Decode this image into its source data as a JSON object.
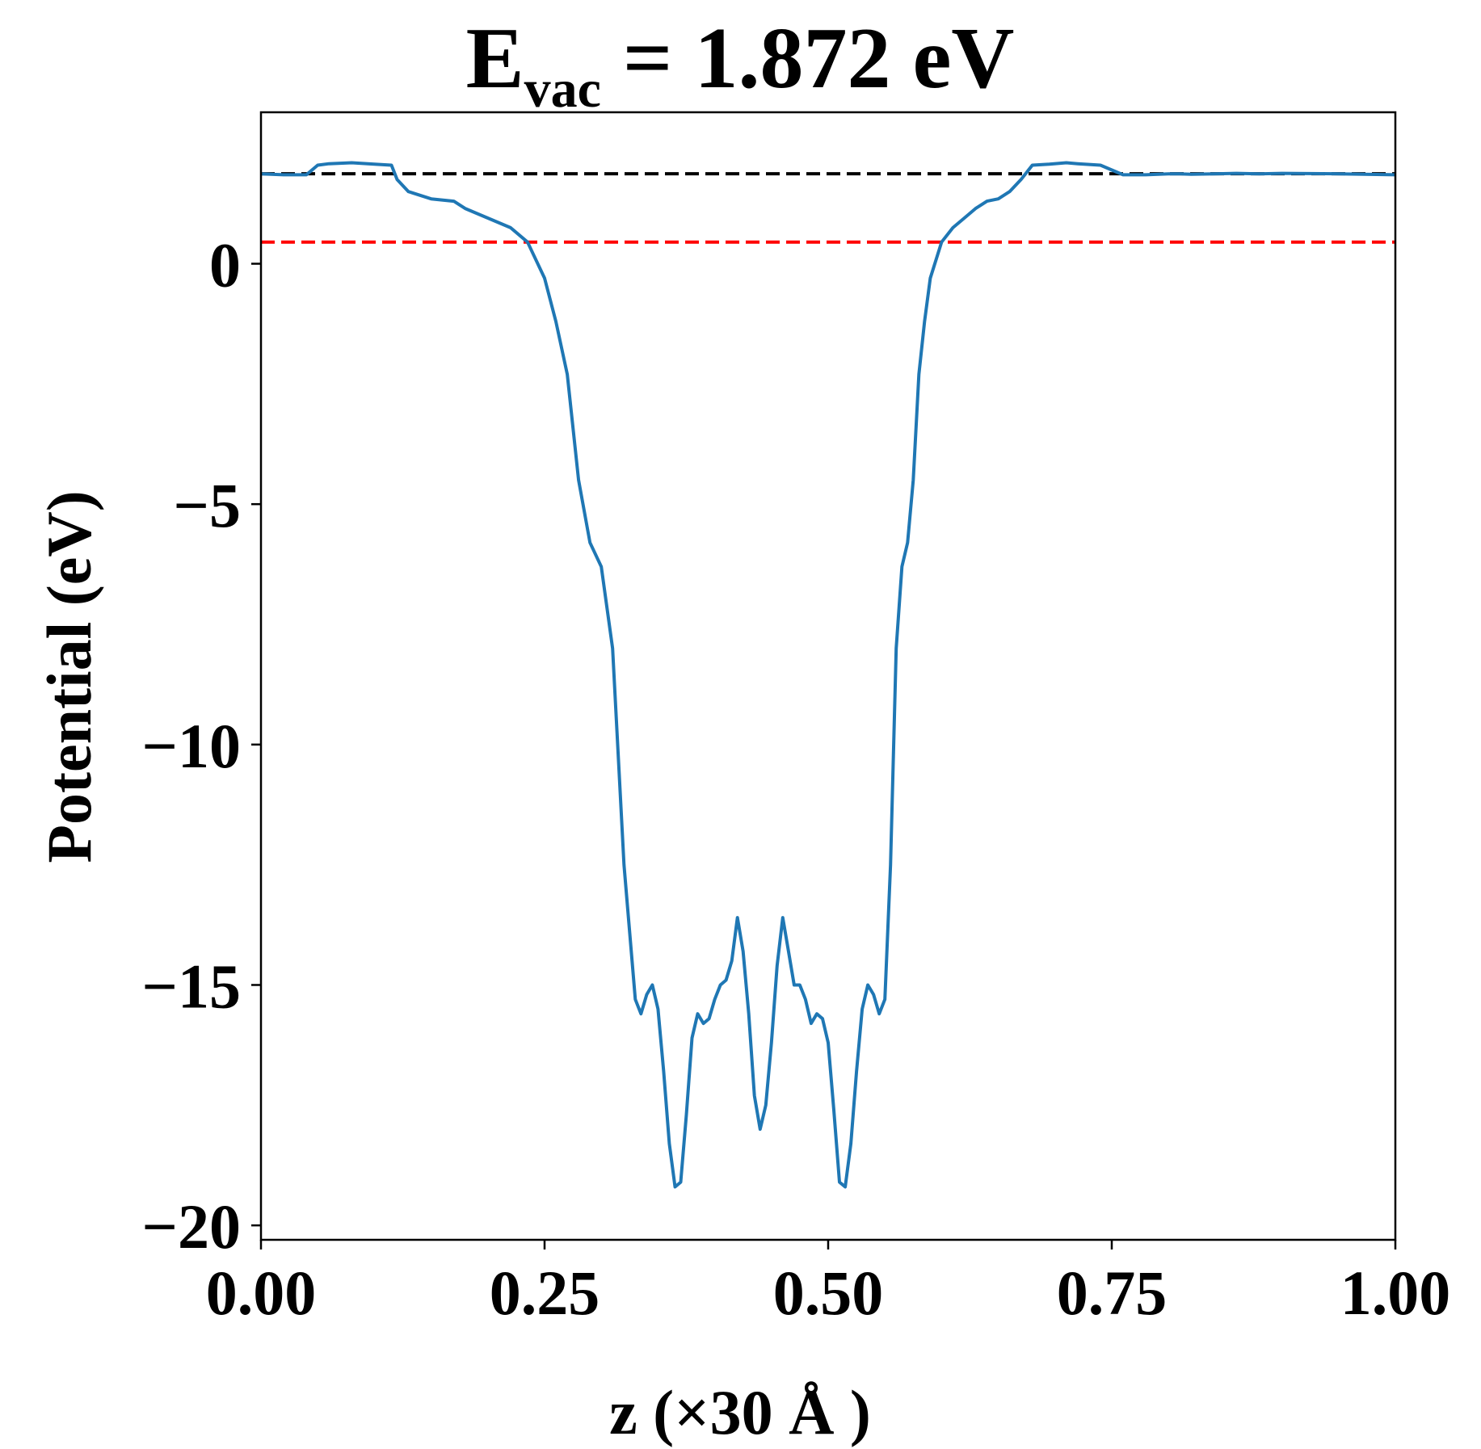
{
  "chart_data": {
    "type": "line",
    "title": {
      "main": "E",
      "subscript": "vac",
      "rest": " = 1.872 eV"
    },
    "xlabel": "z (×30 Å )",
    "ylabel": "Potential (eV)",
    "xlim": [
      0,
      1
    ],
    "ylim": [
      -20.3,
      3.15
    ],
    "xticks": [
      0.0,
      0.25,
      0.5,
      0.75,
      1.0
    ],
    "xtick_labels": [
      "0.00",
      "0.25",
      "0.50",
      "0.75",
      "1.00"
    ],
    "yticks": [
      0,
      -5,
      -10,
      -15,
      -20
    ],
    "ytick_labels": [
      "0",
      "−5",
      "−10",
      "−15",
      "−20"
    ],
    "grid": false,
    "colors": {
      "line": "#1f77b4",
      "vacuum_line": "#000000",
      "reference_line": "#ff0000"
    },
    "reference_lines": [
      {
        "y": 1.872,
        "color": "#000000",
        "style": "dashed"
      },
      {
        "y": 0.45,
        "color": "#ff0000",
        "style": "dashed"
      }
    ],
    "series": [
      {
        "x": [
          0.0,
          0.02,
          0.04,
          0.05,
          0.06,
          0.08,
          0.1,
          0.115,
          0.12,
          0.13,
          0.15,
          0.17,
          0.18,
          0.2,
          0.22,
          0.235,
          0.25,
          0.26,
          0.27,
          0.28,
          0.29,
          0.3,
          0.31,
          0.32,
          0.33,
          0.335,
          0.34,
          0.345,
          0.35,
          0.355,
          0.36,
          0.365,
          0.37,
          0.375,
          0.38,
          0.385,
          0.39,
          0.395,
          0.4,
          0.405,
          0.41,
          0.415,
          0.42,
          0.425,
          0.43,
          0.435,
          0.44,
          0.445,
          0.45,
          0.455,
          0.46,
          0.465,
          0.47,
          0.475,
          0.48,
          0.485,
          0.49,
          0.495,
          0.5,
          0.505,
          0.51,
          0.515,
          0.52,
          0.525,
          0.53,
          0.535,
          0.54,
          0.545,
          0.55,
          0.555,
          0.56,
          0.565,
          0.57,
          0.575,
          0.58,
          0.585,
          0.59,
          0.6,
          0.61,
          0.62,
          0.63,
          0.64,
          0.65,
          0.66,
          0.67,
          0.68,
          0.695,
          0.71,
          0.72,
          0.74,
          0.76,
          0.78,
          0.8,
          0.81,
          0.82,
          0.84,
          0.86,
          0.88,
          0.9,
          0.95,
          1.0
        ],
        "y": [
          1.87,
          1.85,
          1.85,
          2.05,
          2.08,
          2.1,
          2.07,
          2.05,
          1.75,
          1.5,
          1.35,
          1.3,
          1.15,
          0.95,
          0.75,
          0.45,
          -0.3,
          -1.2,
          -2.3,
          -4.5,
          -5.8,
          -6.3,
          -8.0,
          -12.5,
          -15.3,
          -15.6,
          -15.2,
          -15.0,
          -15.5,
          -16.8,
          -18.3,
          -19.2,
          -19.1,
          -17.7,
          -16.1,
          -15.6,
          -15.8,
          -15.7,
          -15.3,
          -15.0,
          -14.9,
          -14.5,
          -13.6,
          -14.3,
          -15.6,
          -17.3,
          -18.0,
          -17.5,
          -16.2,
          -14.6,
          -13.6,
          -14.3,
          -15.0,
          -15.0,
          -15.3,
          -15.8,
          -15.6,
          -15.7,
          -16.2,
          -17.6,
          -19.1,
          -19.2,
          -18.3,
          -16.8,
          -15.5,
          -15.0,
          -15.2,
          -15.6,
          -15.3,
          -12.5,
          -8.0,
          -6.3,
          -5.8,
          -4.5,
          -2.3,
          -1.2,
          -0.3,
          0.45,
          0.75,
          0.95,
          1.15,
          1.3,
          1.35,
          1.5,
          1.75,
          2.05,
          2.07,
          2.1,
          2.08,
          2.05,
          1.85,
          1.85,
          1.87,
          1.87,
          1.86,
          1.87,
          1.88,
          1.87,
          1.88,
          1.87,
          1.85
        ]
      }
    ]
  }
}
